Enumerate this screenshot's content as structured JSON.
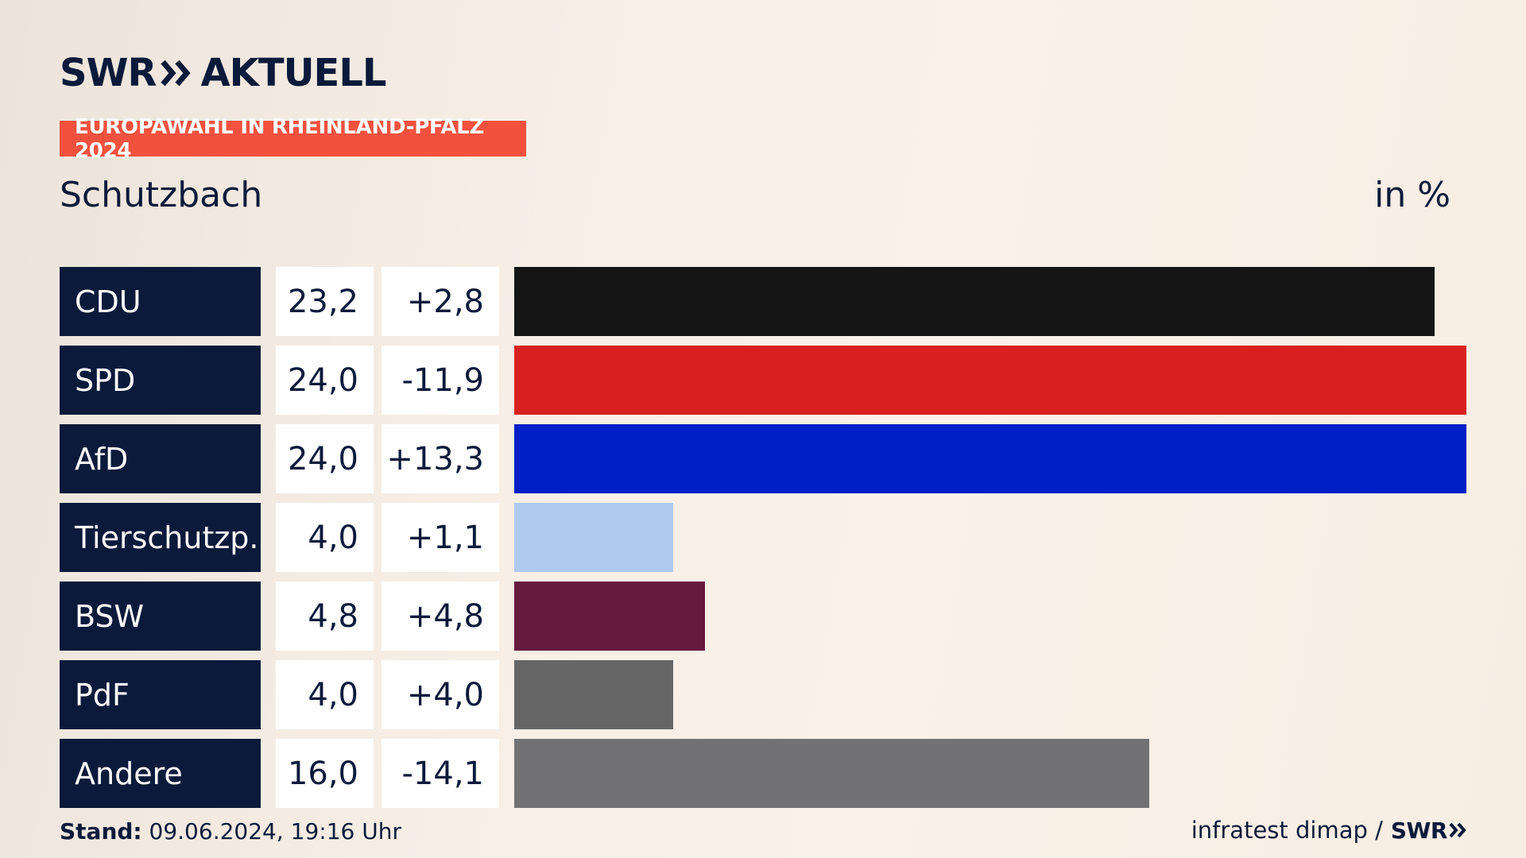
{
  "header": {
    "logo_text": "SWR",
    "logo_suffix": "AKTUELL",
    "tag": "EUROPAWAHL IN RHEINLAND-PFALZ 2024",
    "place": "Schutzbach",
    "unit": "in %"
  },
  "chart_data": {
    "type": "bar",
    "orientation": "horizontal",
    "title": "Europawahl in Rheinland-Pfalz 2024 – Schutzbach",
    "unit": "in %",
    "categories": [
      "CDU",
      "SPD",
      "AfD",
      "Tierschutzp.",
      "BSW",
      "PdF",
      "Andere"
    ],
    "values": [
      23.2,
      24.0,
      24.0,
      4.0,
      4.8,
      4.0,
      16.0
    ],
    "value_labels": [
      "23,2",
      "24,0",
      "24,0",
      "4,0",
      "4,8",
      "4,0",
      "16,0"
    ],
    "diffs": [
      2.8,
      -11.9,
      13.3,
      1.1,
      4.8,
      4.0,
      -14.1
    ],
    "diff_labels": [
      "+2,8",
      "-11,9",
      "+13,3",
      "+1,1",
      "+4,8",
      "+4,0",
      "-14,1"
    ],
    "colors": [
      "#151515",
      "#d8201f",
      "#001fc6",
      "#afc9ef",
      "#661a3e",
      "#666666",
      "#727274"
    ],
    "xlim": [
      0,
      24.0
    ]
  },
  "footer": {
    "stand_label": "Stand:",
    "stand_value": "09.06.2024, 19:16 Uhr",
    "source": "infratest dimap /",
    "brand": "SWR"
  }
}
